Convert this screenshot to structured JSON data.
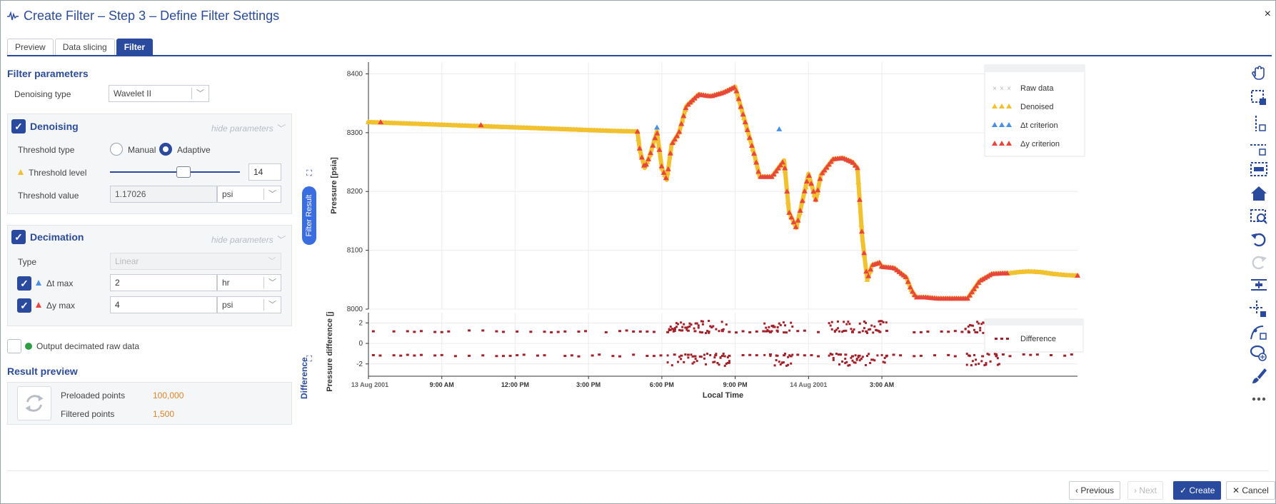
{
  "window": {
    "title": "Create Filter – Step 3 – Define Filter Settings",
    "close_glyph": "×"
  },
  "tabs": [
    {
      "label": "Preview",
      "active": false
    },
    {
      "label": "Data slicing",
      "active": false
    },
    {
      "label": "Filter",
      "active": true
    }
  ],
  "filter_parameters": {
    "title": "Filter parameters",
    "denoising_type_label": "Denoising type",
    "denoising_type_value": "Wavelet II"
  },
  "denoising": {
    "title": "Denoising",
    "hide_label": "hide parameters",
    "threshold_type_label": "Threshold type",
    "radio_manual": "Manual",
    "radio_adaptive": "Adaptive",
    "selected": "Adaptive",
    "threshold_level_label": "Threshold level",
    "threshold_level_value": "14",
    "threshold_level_fraction": 0.57,
    "threshold_value_label": "Threshold value",
    "threshold_value": "1.17026",
    "threshold_unit": "psi"
  },
  "decimation": {
    "title": "Decimation",
    "hide_label": "hide parameters",
    "type_label": "Type",
    "type_value": "Linear",
    "dt_label": "Δt max",
    "dt_value": "2",
    "dt_unit": "hr",
    "dy_label": "Δy max",
    "dy_value": "4",
    "dy_unit": "psi"
  },
  "output_decimated_label": "Output decimated raw data",
  "result_preview": {
    "title": "Result preview",
    "preloaded_label": "Preloaded points",
    "preloaded_value": "100,000",
    "filtered_label": "Filtered points",
    "filtered_value": "1,500"
  },
  "side_labels": {
    "filter_result": "Filter Result",
    "difference": "Difference"
  },
  "chart_data": [
    {
      "type": "line",
      "ylabel": "Pressure [psia]",
      "ylim": [
        8000,
        8420
      ],
      "y_ticks": [
        "8400",
        "8300",
        "8200",
        "8100",
        "8000"
      ],
      "legend": [
        "Raw data",
        "Denoised",
        "Δt criterion",
        "Δy criterion"
      ],
      "legend_position": "top-right",
      "grid": true,
      "x_hours": [
        0,
        2,
        4,
        6,
        8,
        10,
        11,
        11.1,
        11.3,
        11.5,
        11.8,
        12,
        12.2,
        12.4,
        12.7,
        13,
        13.5,
        14,
        14.5,
        15,
        15.6,
        15.8,
        16,
        16.5,
        17,
        17.2,
        17.5,
        18,
        18.3,
        18.5,
        19,
        19.4,
        19.8,
        20,
        20.2,
        20.4,
        20.6,
        20.9,
        21,
        21.5,
        22,
        22.2,
        22.4,
        22.8,
        23.3,
        24,
        24.5,
        25,
        25.5,
        26,
        26.2,
        26.6,
        27,
        27.5,
        28,
        28.5,
        29
      ],
      "y_psia": [
        8318,
        8315,
        8312,
        8309,
        8306,
        8303,
        8302,
        8270,
        8240,
        8260,
        8302,
        8240,
        8220,
        8280,
        8300,
        8345,
        8365,
        8362,
        8368,
        8378,
        8290,
        8260,
        8225,
        8225,
        8253,
        8165,
        8138,
        8230,
        8185,
        8228,
        8255,
        8257,
        8250,
        8240,
        8120,
        8050,
        8075,
        8079,
        8072,
        8070,
        8054,
        8033,
        8020,
        8020,
        8018,
        8018,
        8018,
        8048,
        8060,
        8061,
        8061,
        8063,
        8064,
        8063,
        8060,
        8058,
        8057
      ],
      "dt_markers": [
        [
          11.8,
          8309
        ],
        [
          16.8,
          8306
        ]
      ],
      "dy_markers": [
        [
          0.5,
          8318
        ],
        [
          4.6,
          8313
        ],
        [
          29,
          8057
        ]
      ]
    },
    {
      "type": "scatter",
      "ylabel": "Pressure difference [j",
      "ylim": [
        -3.2,
        3
      ],
      "y_ticks": [
        "2",
        "0",
        "-2"
      ],
      "legend": [
        "Difference"
      ],
      "legend_position": "top-right",
      "series": [
        {
          "name": "Difference",
          "color": "#a3212a"
        }
      ],
      "baseline_levels": [
        1.17,
        -1.17
      ],
      "dense_regions_hours": [
        [
          12.2,
          14.8
        ],
        [
          16.2,
          17.4
        ],
        [
          18.8,
          21.2
        ],
        [
          24.4,
          25.8
        ]
      ],
      "x_tick_labels": [
        "13 Aug 2001",
        "9:00 AM",
        "12:00 PM",
        "3:00 PM",
        "6:00 PM",
        "9:00 PM",
        "14 Aug 2001",
        "3:00 AM"
      ],
      "xlabel": "Local Time"
    }
  ],
  "result_counts_note": "",
  "footer": {
    "previous": "Previous",
    "next": "Next",
    "create": "Create",
    "cancel": "Cancel"
  },
  "colors": {
    "accent": "#2a4a9e",
    "denoised": "#f2c12e",
    "dy_criterion": "#e8453c",
    "dt_criterion": "#4a90e2",
    "raw": "#b0b0b0",
    "difference": "#a3212a"
  },
  "toolbar_icons": [
    "pan-icon",
    "box-select-icon",
    "vertical-select-icon",
    "horizontal-select-icon",
    "range-select-icon",
    "home-icon",
    "zoom-icon",
    "undo-icon",
    "redo-icon",
    "align-icon",
    "crosshair-icon",
    "curve-icon",
    "lasso-icon",
    "brush-icon",
    "more-icon"
  ]
}
